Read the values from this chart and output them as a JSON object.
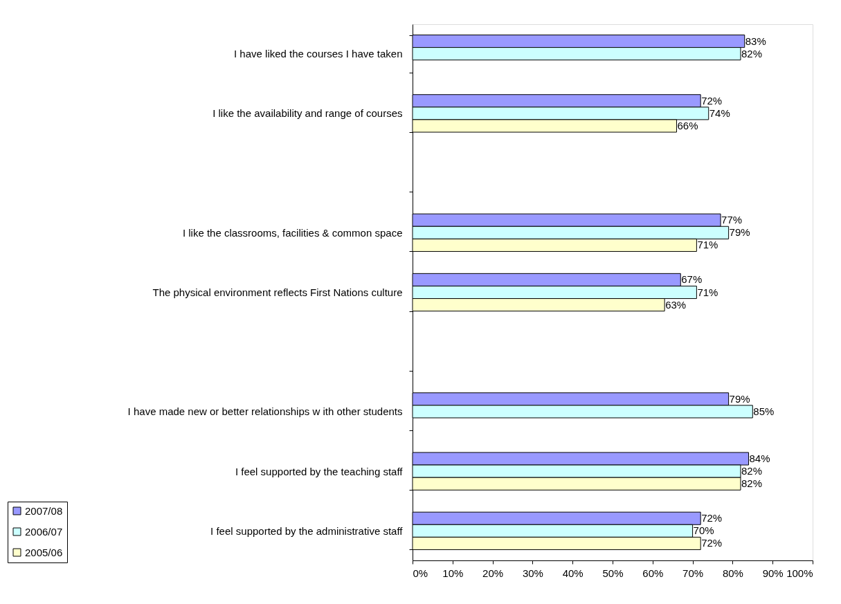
{
  "chart_data": {
    "type": "bar",
    "orientation": "horizontal",
    "categories": [
      "I have liked the courses I have taken",
      "I like the availability and range of courses",
      null,
      "I like the classrooms, facilities & common space",
      "The physical environment reflects First Nations culture",
      null,
      "I have made new  or better relationships w ith other students",
      "I feel supported by the teaching staff",
      "I feel supported by the administrative staff"
    ],
    "series": [
      {
        "name": "2007/08",
        "color": "#9999ff",
        "values": [
          83,
          72,
          null,
          77,
          67,
          null,
          79,
          84,
          72
        ],
        "value_labels": [
          "83%",
          "72%",
          null,
          "77%",
          "67%",
          null,
          "79%",
          "84%",
          "72%"
        ]
      },
      {
        "name": "2006/07",
        "color": "#ccffff",
        "values": [
          82,
          74,
          null,
          79,
          71,
          null,
          85,
          82,
          70
        ],
        "value_labels": [
          "82%",
          "74%",
          null,
          "79%",
          "71%",
          null,
          "85%",
          "82%",
          "70%"
        ]
      },
      {
        "name": "2005/06",
        "color": "#ffffcc",
        "values": [
          null,
          66,
          null,
          71,
          63,
          null,
          null,
          82,
          72
        ],
        "value_labels": [
          null,
          "66%",
          null,
          "71%",
          "63%",
          null,
          null,
          "82%",
          "72%"
        ]
      }
    ],
    "xlim": [
      0,
      100
    ],
    "xticks": [
      {
        "value": 0,
        "label": "0%"
      },
      {
        "value": 10,
        "label": "10%"
      },
      {
        "value": 20,
        "label": "20%"
      },
      {
        "value": 30,
        "label": "30%"
      },
      {
        "value": 40,
        "label": "40%"
      },
      {
        "value": 50,
        "label": "50%"
      },
      {
        "value": 60,
        "label": "60%"
      },
      {
        "value": 70,
        "label": "70%"
      },
      {
        "value": 80,
        "label": "80%"
      },
      {
        "value": 90,
        "label": "90%"
      },
      {
        "value": 100,
        "label": "100%"
      }
    ],
    "grid": false,
    "legend": "bottom left"
  }
}
